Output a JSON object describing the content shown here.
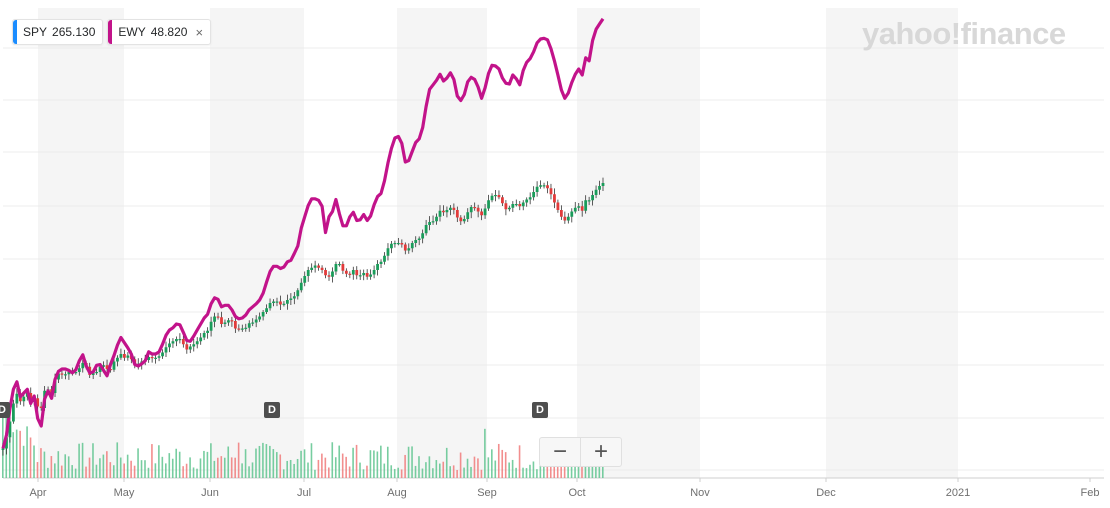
{
  "legend": [
    {
      "symbol": "SPY",
      "value": "265.130",
      "color": "#1a8cff"
    },
    {
      "symbol": "EWY",
      "value": "48.820",
      "color": "#c2138a",
      "close": "×"
    }
  ],
  "brand": "yahoo!finance",
  "zoom": {
    "minus": "−",
    "plus": "+"
  },
  "dividend_marker": "D",
  "chart_data": {
    "type": "line",
    "title": "",
    "x_labels": [
      "Apr",
      "May",
      "Jun",
      "Jul",
      "Aug",
      "Sep",
      "Oct",
      "Nov",
      "Dec",
      "2021",
      "Feb"
    ],
    "series": [
      {
        "name": "EWY",
        "style": "line",
        "color": "#c2138a",
        "values": [
          2,
          20,
          55,
          81,
          91,
          71,
          76,
          81,
          62,
          72,
          42,
          32,
          68,
          79,
          69,
          94,
          105,
          108,
          108,
          106,
          103,
          107,
          119,
          127,
          112,
          103,
          104,
          113,
          114,
          106,
          99,
          114,
          126,
          140,
          150,
          143,
          136,
          128,
          114,
          112,
          115,
          119,
          131,
          128,
          128,
          131,
          141,
          153,
          160,
          163,
          168,
          167,
          157,
          146,
          145,
          152,
          160,
          168,
          176,
          181,
          195,
          203,
          201,
          191,
          193,
          193,
          187,
          178,
          175,
          176,
          180,
          187,
          191,
          195,
          200,
          209,
          224,
          238,
          245,
          245,
          242,
          244,
          251,
          253,
          262,
          272,
          296,
          311,
          326,
          335,
          335,
          333,
          325,
          290,
          311,
          318,
          334,
          315,
          299,
          299,
          311,
          317,
          306,
          307,
          314,
          306,
          312,
          327,
          338,
          342,
          359,
          383,
          402,
          416,
          418,
          409,
          384,
          386,
          398,
          410,
          415,
          430,
          458,
          481,
          487,
          493,
          501,
          492,
          496,
          503,
          494,
          472,
          466,
          474,
          491,
          497,
          494,
          484,
          469,
          483,
          502,
          513,
          512,
          508,
          496,
          489,
          488,
          500,
          495,
          487,
          506,
          517,
          522,
          531,
          543,
          548,
          549,
          547,
          535,
          519,
          500,
          480,
          469,
          476,
          490,
          501,
          508,
          500,
          523,
          519,
          546,
          561,
          568,
          575
        ]
      },
      {
        "name": "SPY",
        "style": "candlestick",
        "color": "#1a8cff",
        "values": [
          2,
          17,
          38,
          62,
          75,
          65,
          71,
          76,
          64,
          69,
          58,
          56,
          79,
          81,
          76,
          94,
          102,
          101,
          101,
          104,
          104,
          104,
          109,
          116,
          111,
          100,
          103,
          104,
          111,
          113,
          108,
          107,
          118,
          123,
          128,
          123,
          126,
          121,
          115,
          115,
          118,
          120,
          124,
          123,
          123,
          125,
          130,
          137,
          142,
          145,
          148,
          148,
          141,
          134,
          138,
          141,
          145,
          150,
          156,
          159,
          171,
          178,
          177,
          168,
          170,
          173,
          172,
          162,
          161,
          162,
          163,
          169,
          170,
          174,
          178,
          184,
          189,
          196,
          198,
          198,
          194,
          195,
          200,
          202,
          205,
          213,
          223,
          232,
          240,
          243,
          246,
          243,
          240,
          233,
          231,
          238,
          248,
          248,
          239,
          235,
          234,
          240,
          233,
          233,
          236,
          231,
          234,
          240,
          248,
          251,
          259,
          269,
          275,
          276,
          276,
          274,
          266,
          269,
          276,
          280,
          282,
          289,
          300,
          304,
          305,
          311,
          319,
          317,
          320,
          323,
          320,
          310,
          305,
          308,
          317,
          324,
          323,
          318,
          313,
          322,
          333,
          339,
          340,
          337,
          329,
          321,
          323,
          328,
          328,
          325,
          330,
          334,
          337,
          344,
          351,
          353,
          353,
          349,
          341,
          330,
          320,
          311,
          306,
          311,
          318,
          323,
          325,
          319,
          333,
          333,
          340,
          347,
          352,
          356
        ]
      }
    ],
    "volume": "bars along the bottom, green/red by daily direction",
    "grid": true
  }
}
